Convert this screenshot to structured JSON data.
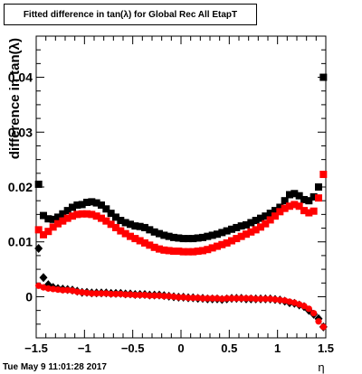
{
  "title": "Fitted difference in tan(λ) for Global Rec All EtapT",
  "footer_timestamp": "Tue May  9 11:01:28 2017",
  "chart_data": {
    "type": "scatter",
    "title": "Fitted difference in tan(λ) for Global Rec All EtapT",
    "xlabel": "η",
    "ylabel": "difference in tan(λ)",
    "xlim": [
      -1.5,
      1.5
    ],
    "ylim": [
      -0.0075,
      0.0475
    ],
    "x_ticks": [
      -1.5,
      -1,
      -0.5,
      0,
      0.5,
      1,
      1.5
    ],
    "x_tick_labels": [
      "−1.5",
      "−1",
      "−0.5",
      "0",
      "0.5",
      "1",
      "1.5"
    ],
    "y_ticks": [
      0,
      0.01,
      0.02,
      0.03,
      0.04
    ],
    "y_tick_labels": [
      "0",
      "0.01",
      "0.02",
      "0.03",
      "0.04"
    ],
    "grid": false,
    "legend": "none",
    "series": [
      {
        "color": "#000000",
        "marker": "square",
        "x": [
          -1.475,
          -1.425,
          -1.375,
          -1.325,
          -1.275,
          -1.225,
          -1.175,
          -1.125,
          -1.075,
          -1.025,
          -0.975,
          -0.925,
          -0.875,
          -0.825,
          -0.775,
          -0.725,
          -0.675,
          -0.625,
          -0.575,
          -0.525,
          -0.475,
          -0.425,
          -0.375,
          -0.325,
          -0.275,
          -0.225,
          -0.175,
          -0.125,
          -0.075,
          -0.025,
          0.025,
          0.075,
          0.125,
          0.175,
          0.225,
          0.275,
          0.325,
          0.375,
          0.425,
          0.475,
          0.525,
          0.575,
          0.625,
          0.675,
          0.725,
          0.775,
          0.825,
          0.875,
          0.925,
          0.975,
          1.025,
          1.075,
          1.125,
          1.175,
          1.225,
          1.275,
          1.325,
          1.375,
          1.425,
          1.475
        ],
        "y": [
          0.0205,
          0.0148,
          0.0142,
          0.0141,
          0.0145,
          0.0151,
          0.0157,
          0.0163,
          0.0167,
          0.0168,
          0.0172,
          0.0173,
          0.0171,
          0.0167,
          0.016,
          0.0152,
          0.0145,
          0.0139,
          0.0135,
          0.0132,
          0.0129,
          0.0128,
          0.0126,
          0.0122,
          0.0118,
          0.0115,
          0.0112,
          0.011,
          0.0108,
          0.0107,
          0.0106,
          0.0106,
          0.0106,
          0.0107,
          0.0108,
          0.011,
          0.0112,
          0.0114,
          0.0117,
          0.012,
          0.0123,
          0.0126,
          0.0129,
          0.0131,
          0.0135,
          0.0139,
          0.0143,
          0.0147,
          0.0152,
          0.0157,
          0.0163,
          0.0175,
          0.0186,
          0.0188,
          0.0184,
          0.0177,
          0.0175,
          0.0182,
          0.02,
          0.04
        ]
      },
      {
        "color": "#ff0000",
        "marker": "square",
        "x": [
          -1.475,
          -1.425,
          -1.375,
          -1.325,
          -1.275,
          -1.225,
          -1.175,
          -1.125,
          -1.075,
          -1.025,
          -0.975,
          -0.925,
          -0.875,
          -0.825,
          -0.775,
          -0.725,
          -0.675,
          -0.625,
          -0.575,
          -0.525,
          -0.475,
          -0.425,
          -0.375,
          -0.325,
          -0.275,
          -0.225,
          -0.175,
          -0.125,
          -0.075,
          -0.025,
          0.025,
          0.075,
          0.125,
          0.175,
          0.225,
          0.275,
          0.325,
          0.375,
          0.425,
          0.475,
          0.525,
          0.575,
          0.625,
          0.675,
          0.725,
          0.775,
          0.825,
          0.875,
          0.925,
          0.975,
          1.025,
          1.075,
          1.125,
          1.175,
          1.225,
          1.275,
          1.325,
          1.375,
          1.425,
          1.475
        ],
        "y": [
          0.0122,
          0.0113,
          0.0119,
          0.0127,
          0.0133,
          0.0138,
          0.0143,
          0.0147,
          0.015,
          0.0151,
          0.0151,
          0.015,
          0.0147,
          0.0143,
          0.0138,
          0.0132,
          0.0126,
          0.012,
          0.0115,
          0.011,
          0.0106,
          0.0102,
          0.0098,
          0.0094,
          0.009,
          0.0087,
          0.0085,
          0.0084,
          0.0083,
          0.0083,
          0.0082,
          0.0082,
          0.0082,
          0.0083,
          0.0084,
          0.0086,
          0.0089,
          0.0092,
          0.0095,
          0.0098,
          0.0102,
          0.0106,
          0.011,
          0.0114,
          0.0118,
          0.0122,
          0.0127,
          0.0133,
          0.014,
          0.0147,
          0.0155,
          0.0161,
          0.0165,
          0.0168,
          0.0165,
          0.0157,
          0.0153,
          0.0156,
          0.018,
          0.0223
        ]
      },
      {
        "color": "#000000",
        "marker": "diamond",
        "x": [
          -1.475,
          -1.425,
          -1.375,
          -1.325,
          -1.275,
          -1.225,
          -1.175,
          -1.125,
          -1.075,
          -1.025,
          -0.975,
          -0.925,
          -0.875,
          -0.825,
          -0.775,
          -0.725,
          -0.675,
          -0.625,
          -0.575,
          -0.525,
          -0.475,
          -0.425,
          -0.375,
          -0.325,
          -0.275,
          -0.225,
          -0.175,
          -0.125,
          -0.075,
          -0.025,
          0.025,
          0.075,
          0.125,
          0.175,
          0.225,
          0.275,
          0.325,
          0.375,
          0.425,
          0.475,
          0.525,
          0.575,
          0.625,
          0.675,
          0.725,
          0.775,
          0.825,
          0.875,
          0.925,
          0.975,
          1.025,
          1.075,
          1.125,
          1.175,
          1.225,
          1.275,
          1.325,
          1.375,
          1.425,
          1.475
        ],
        "y": [
          0.0088,
          0.0035,
          0.0022,
          0.0017,
          0.0015,
          0.0014,
          0.0013,
          0.0012,
          0.001,
          0.0008,
          0.0008,
          0.0007,
          0.0007,
          0.0007,
          0.0007,
          0.0006,
          0.0006,
          0.0006,
          0.0005,
          0.0005,
          0.0004,
          0.0004,
          0.0004,
          0.0003,
          0.0003,
          0.0003,
          0.0002,
          0.0001,
          0.0,
          -0.0001,
          -0.0001,
          -0.0002,
          -0.0002,
          -0.0003,
          -0.0003,
          -0.0004,
          -0.0004,
          -0.0004,
          -0.0005,
          -0.0004,
          -0.0003,
          -0.0003,
          -0.0003,
          -0.0004,
          -0.0004,
          -0.0004,
          -0.0004,
          -0.0004,
          -0.0004,
          -0.0005,
          -0.0006,
          -0.0008,
          -0.0011,
          -0.0012,
          -0.0015,
          -0.0018,
          -0.0025,
          -0.0032,
          -0.004,
          -0.0055
        ]
      },
      {
        "color": "#ff0000",
        "marker": "circle",
        "x": [
          -1.475,
          -1.425,
          -1.375,
          -1.325,
          -1.275,
          -1.225,
          -1.175,
          -1.125,
          -1.075,
          -1.025,
          -0.975,
          -0.925,
          -0.875,
          -0.825,
          -0.775,
          -0.725,
          -0.675,
          -0.625,
          -0.575,
          -0.525,
          -0.475,
          -0.425,
          -0.375,
          -0.325,
          -0.275,
          -0.225,
          -0.175,
          -0.125,
          -0.075,
          -0.025,
          0.025,
          0.075,
          0.125,
          0.175,
          0.225,
          0.275,
          0.325,
          0.375,
          0.425,
          0.475,
          0.525,
          0.575,
          0.625,
          0.675,
          0.725,
          0.775,
          0.825,
          0.875,
          0.925,
          0.975,
          1.025,
          1.075,
          1.125,
          1.175,
          1.225,
          1.275,
          1.325,
          1.375,
          1.425,
          1.475
        ],
        "y": [
          0.002,
          0.0017,
          0.0015,
          0.0014,
          0.0013,
          0.0012,
          0.0012,
          0.0011,
          0.0009,
          0.0008,
          0.0007,
          0.0006,
          0.0006,
          0.0006,
          0.0006,
          0.0005,
          0.0005,
          0.0005,
          0.0004,
          0.0004,
          0.0003,
          0.0003,
          0.0003,
          0.0002,
          0.0002,
          0.0002,
          0.0001,
          0.0001,
          0.0,
          -0.0001,
          -0.0001,
          -0.0002,
          -0.0002,
          -0.0002,
          -0.0003,
          -0.0003,
          -0.0003,
          -0.0003,
          -0.0004,
          -0.0003,
          -0.0003,
          -0.0003,
          -0.0003,
          -0.0003,
          -0.0003,
          -0.0004,
          -0.0004,
          -0.0004,
          -0.0004,
          -0.0005,
          -0.0006,
          -0.0007,
          -0.0009,
          -0.0011,
          -0.0014,
          -0.0017,
          -0.0022,
          -0.003,
          -0.0045,
          -0.0055
        ]
      }
    ]
  }
}
